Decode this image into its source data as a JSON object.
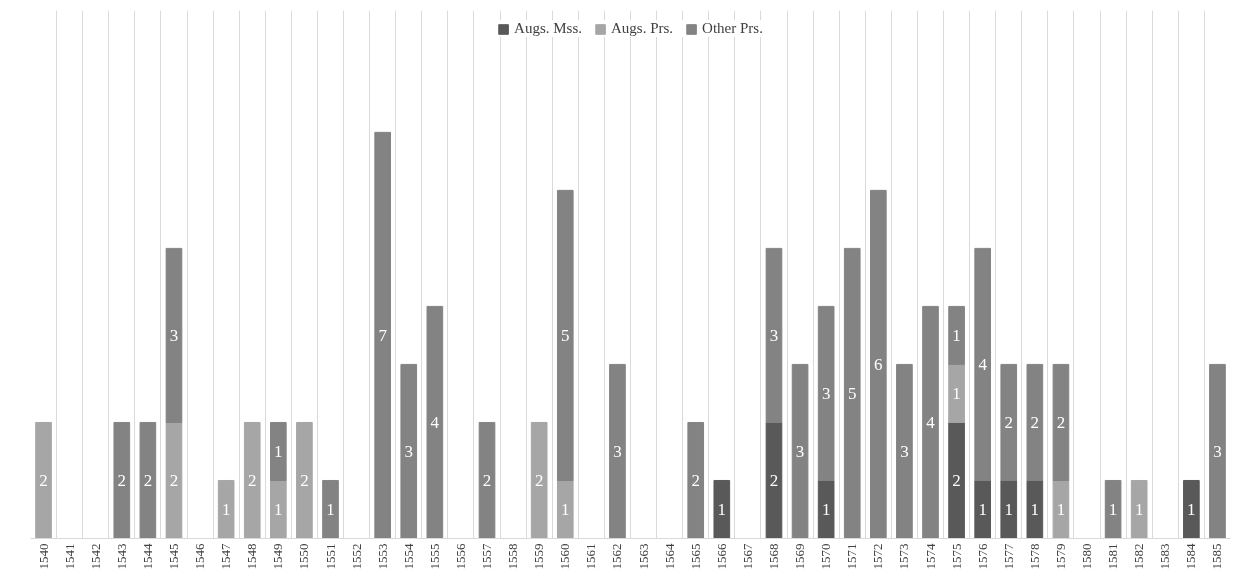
{
  "chart_data": {
    "type": "bar",
    "stacked": true,
    "data_labels": true,
    "legend": "top",
    "grid": "x",
    "tick_labels": "x",
    "categories": [
      "1540",
      "1541",
      "1542",
      "1543",
      "1544",
      "1545",
      "1546",
      "1547",
      "1548",
      "1549",
      "1550",
      "1551",
      "1552",
      "1553",
      "1554",
      "1555",
      "1556",
      "1557",
      "1558",
      "1559",
      "1560",
      "1561",
      "1562",
      "1563",
      "1564",
      "1565",
      "1566",
      "1567",
      "1568",
      "1569",
      "1570",
      "1571",
      "1572",
      "1573",
      "1574",
      "1575",
      "1576",
      "1577",
      "1578",
      "1579",
      "1580",
      "1581",
      "1582",
      "1583",
      "1584",
      "1585"
    ],
    "series": [
      {
        "name": "Augs. Mss.",
        "color": "#595959",
        "values": [
          null,
          null,
          null,
          null,
          null,
          null,
          null,
          null,
          null,
          null,
          null,
          null,
          null,
          null,
          null,
          null,
          null,
          null,
          null,
          null,
          null,
          null,
          null,
          null,
          null,
          null,
          1,
          null,
          2,
          null,
          1,
          null,
          null,
          null,
          null,
          2,
          1,
          1,
          1,
          null,
          null,
          null,
          null,
          null,
          1,
          null
        ]
      },
      {
        "name": "Augs. Prs.",
        "color": "#a6a6a6",
        "values": [
          2,
          null,
          null,
          null,
          null,
          2,
          null,
          1,
          2,
          1,
          2,
          null,
          null,
          null,
          null,
          null,
          null,
          null,
          null,
          2,
          1,
          null,
          null,
          null,
          null,
          null,
          null,
          null,
          null,
          null,
          null,
          null,
          null,
          null,
          null,
          1,
          null,
          null,
          null,
          1,
          null,
          null,
          1,
          null,
          null,
          null
        ]
      },
      {
        "name": "Other Prs.",
        "color": "#838383",
        "values": [
          null,
          null,
          null,
          2,
          2,
          3,
          null,
          null,
          null,
          1,
          null,
          1,
          null,
          7,
          3,
          4,
          null,
          2,
          null,
          null,
          5,
          null,
          3,
          null,
          null,
          2,
          null,
          null,
          3,
          3,
          3,
          5,
          6,
          3,
          4,
          1,
          4,
          2,
          2,
          2,
          null,
          1,
          null,
          null,
          null,
          3
        ]
      }
    ]
  }
}
